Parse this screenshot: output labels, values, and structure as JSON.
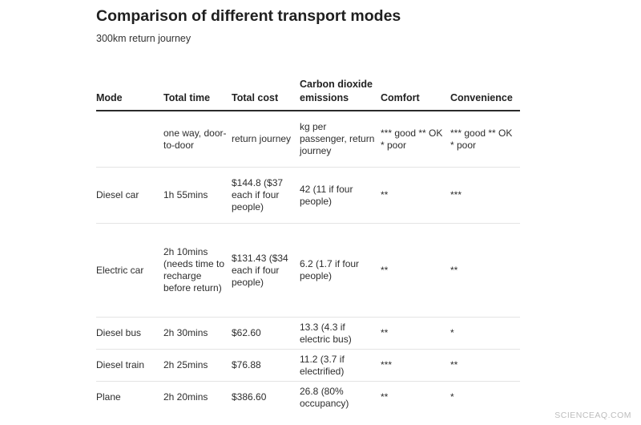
{
  "chart_data": {
    "type": "table",
    "title": "Comparison of different transport modes",
    "subtitle": "300km return journey",
    "columns": [
      "Mode",
      "Total time",
      "Total cost",
      "Carbon dioxide emissions",
      "Comfort",
      "Convenience"
    ],
    "rows": [
      [
        "",
        "one way, door-to-door",
        "return journey",
        "kg per passenger, return journey",
        "*** good ** OK * poor",
        "*** good ** OK * poor"
      ],
      [
        "Diesel car",
        "1h 55mins",
        "$144.8 ($37 each if four people)",
        "42 (11 if four people)",
        "**",
        "***"
      ],
      [
        "Electric car",
        "2h 10mins (needs time to recharge before return)",
        "$131.43 ($34 each if four people)",
        "6.2 (1.7 if four people)",
        "**",
        "**"
      ],
      [
        "Diesel bus",
        "2h 30mins",
        "$62.60",
        "13.3 (4.3 if electric bus)",
        "**",
        "*"
      ],
      [
        "Diesel train",
        "2h 25mins",
        "$76.88",
        "11.2 (3.7 if electrified)",
        "***",
        "**"
      ],
      [
        "Plane",
        "2h 20mins",
        "$386.60",
        "26.8 (80% occupancy)",
        "**",
        "*"
      ]
    ]
  },
  "watermark": "SCIENCEAQ.COM"
}
